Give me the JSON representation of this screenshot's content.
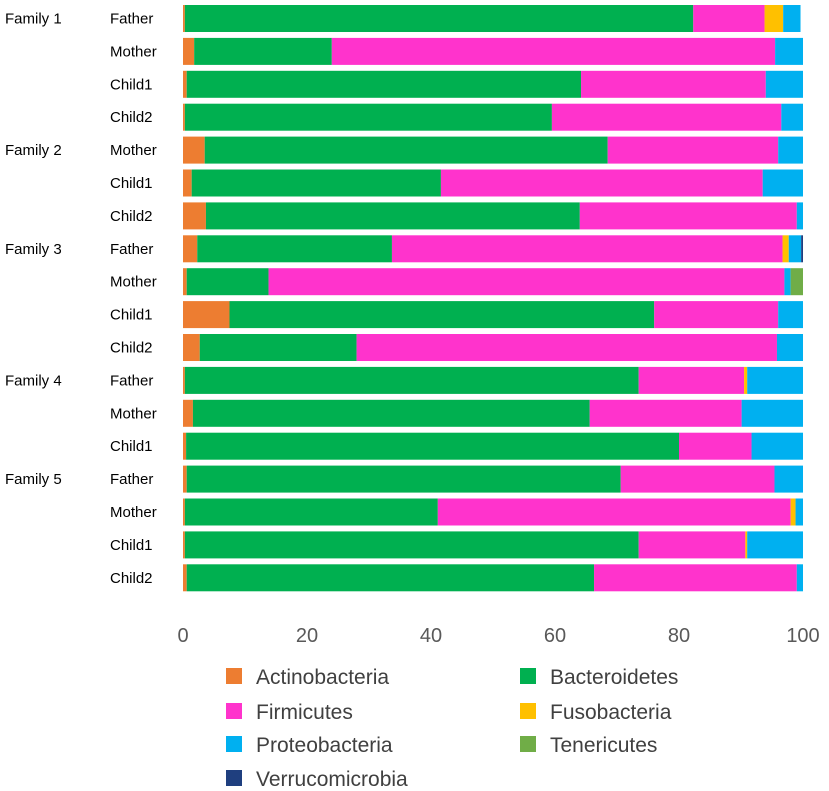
{
  "chart_data": {
    "type": "bar",
    "orientation": "horizontal",
    "stacked": true,
    "title": "",
    "xlabel": "",
    "ylabel": "",
    "xlim": [
      0,
      100
    ],
    "xticks": [
      "0",
      "20",
      "40",
      "60",
      "80",
      "100"
    ],
    "grid": false,
    "legend_position": "bottom",
    "series_names": [
      "Actinobacteria",
      "Bacteroidetes",
      "Firmicutes",
      "Fusobacteria",
      "Proteobacteria",
      "Tenericutes",
      "Verrucomicrobia"
    ],
    "colors": [
      "#ED7D31",
      "#00B050",
      "#FF33CC",
      "#FFC000",
      "#00B0F0",
      "#70AD47",
      "#1F3F7F"
    ],
    "legend_order": [
      "Actinobacteria",
      "Bacteroidetes",
      "Firmicutes",
      "Fusobacteria",
      "Proteobacteria",
      "Tenericutes",
      "Verrucomicrobia"
    ],
    "groups": [
      {
        "family": "Family 1",
        "rows": [
          {
            "label": "Father",
            "values": [
              0.3,
              82.0,
              11.5,
              3.0,
              2.8,
              0,
              0
            ]
          },
          {
            "label": "Mother",
            "values": [
              1.8,
              22.2,
              71.5,
              0,
              4.5,
              0,
              0
            ]
          },
          {
            "label": "Child1",
            "values": [
              0.6,
              63.6,
              29.8,
              0,
              6.0,
              0,
              0
            ]
          },
          {
            "label": "Child2",
            "values": [
              0.3,
              59.2,
              37.0,
              0,
              3.5,
              0,
              0
            ]
          }
        ]
      },
      {
        "family": "Family 2",
        "rows": [
          {
            "label": "Mother",
            "values": [
              3.5,
              65.0,
              27.5,
              0,
              4.0,
              0,
              0
            ]
          },
          {
            "label": "Child1",
            "values": [
              1.4,
              40.2,
              51.9,
              0,
              6.5,
              0,
              0
            ]
          },
          {
            "label": "Child2",
            "values": [
              3.7,
              60.3,
              35.0,
              0,
              1.0,
              0,
              0
            ]
          }
        ]
      },
      {
        "family": "Family 3",
        "rows": [
          {
            "label": "Father",
            "values": [
              2.3,
              31.4,
              63.0,
              1.0,
              2.0,
              0,
              0.3
            ]
          },
          {
            "label": "Mother",
            "values": [
              0.6,
              13.2,
              83.2,
              0,
              1.0,
              2.0,
              0
            ]
          },
          {
            "label": "Child1",
            "values": [
              7.5,
              68.5,
              20.0,
              0,
              4.0,
              0,
              0
            ]
          },
          {
            "label": "Child2",
            "values": [
              2.7,
              25.3,
              67.8,
              0,
              4.2,
              0,
              0
            ]
          }
        ]
      },
      {
        "family": "Family 4",
        "rows": [
          {
            "label": "Father",
            "values": [
              0.3,
              73.2,
              17.0,
              0.5,
              9.0,
              0,
              0
            ]
          },
          {
            "label": "Mother",
            "values": [
              1.6,
              64.0,
              24.5,
              0,
              9.9,
              0,
              0
            ]
          },
          {
            "label": "Child1",
            "values": [
              0.5,
              79.5,
              11.7,
              0,
              8.3,
              0,
              0
            ]
          }
        ]
      },
      {
        "family": "Family 5",
        "rows": [
          {
            "label": "Father",
            "values": [
              0.6,
              70.0,
              24.8,
              0,
              4.6,
              0,
              0
            ]
          },
          {
            "label": "Mother",
            "values": [
              0.3,
              40.8,
              56.9,
              0.8,
              1.2,
              0,
              0
            ]
          },
          {
            "label": "Child1",
            "values": [
              0.3,
              73.2,
              17.2,
              0.3,
              9.0,
              0,
              0
            ]
          },
          {
            "label": "Child2",
            "values": [
              0.6,
              65.7,
              32.7,
              0,
              1.0,
              0,
              0
            ]
          }
        ]
      }
    ]
  }
}
